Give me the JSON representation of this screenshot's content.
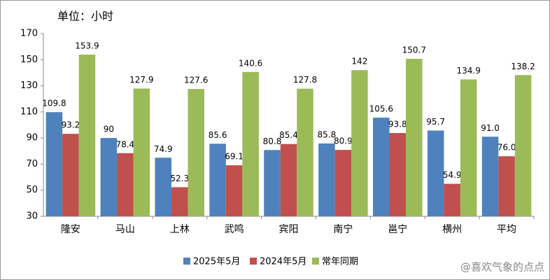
{
  "chart_data": {
    "type": "bar",
    "annotation": "单位：小时",
    "watermark": "@喜欢气象的点点",
    "categories": [
      "隆安",
      "马山",
      "上林",
      "武鸣",
      "宾阳",
      "南宁",
      "邕宁",
      "横州",
      "平均"
    ],
    "series": [
      {
        "name": "2025年5月",
        "color": "#4f81bd",
        "values": [
          109.8,
          90,
          74.9,
          85.6,
          80.8,
          85.8,
          105.6,
          95.7,
          91.0
        ],
        "value_labels": [
          "109.8",
          "90",
          "74.9",
          "85.6",
          "80.8",
          "85.8",
          "105.6",
          "95.7",
          "91.0"
        ]
      },
      {
        "name": "2024年5月",
        "color": "#c0504d",
        "values": [
          93.2,
          78.4,
          52.3,
          69.1,
          85.4,
          80.9,
          93.8,
          54.9,
          76.0
        ],
        "value_labels": [
          "93.2",
          "78.4",
          "52.3",
          "69.1",
          "85.4",
          "80.9",
          "93.8",
          "54.9",
          "76.0"
        ]
      },
      {
        "name": "常年同期",
        "color": "#9bbb59",
        "values": [
          153.9,
          127.9,
          127.6,
          140.6,
          127.8,
          142,
          150.7,
          134.9,
          138.2
        ],
        "value_labels": [
          "153.9",
          "127.9",
          "127.6",
          "140.6",
          "127.8",
          "142",
          "150.7",
          "134.9",
          "138.2"
        ]
      }
    ],
    "ylim": [
      30,
      170
    ],
    "yticks": [
      30,
      50,
      70,
      90,
      110,
      130,
      150,
      170
    ],
    "grid": false,
    "legend": "bottom"
  }
}
